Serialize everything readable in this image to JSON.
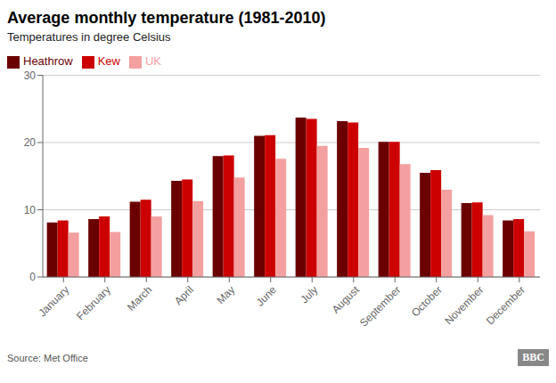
{
  "chart_data": {
    "type": "bar",
    "title": "Average monthly temperature (1981-2010)",
    "subtitle": "Temperatures in degree Celsius",
    "annotations": [
      "Source: Met Office",
      "BBC"
    ],
    "categories": [
      "January",
      "February",
      "March",
      "April",
      "May",
      "June",
      "July",
      "August",
      "September",
      "October",
      "November",
      "December"
    ],
    "series": [
      {
        "name": "Heathrow",
        "color": "#6B0000",
        "values": [
          8.1,
          8.6,
          11.2,
          14.3,
          18.0,
          21.0,
          23.7,
          23.2,
          20.1,
          15.5,
          11.0,
          8.4
        ]
      },
      {
        "name": "Kew",
        "color": "#CC0000",
        "values": [
          8.4,
          9.0,
          11.5,
          14.5,
          18.1,
          21.1,
          23.5,
          23.0,
          20.1,
          15.9,
          11.1,
          8.6
        ]
      },
      {
        "name": "UK",
        "color": "#F4A0A0",
        "values": [
          6.6,
          6.7,
          9.0,
          11.3,
          14.8,
          17.6,
          19.5,
          19.2,
          16.8,
          13.0,
          9.2,
          6.8
        ]
      }
    ],
    "ylim": [
      0,
      30
    ],
    "yticks": [
      0,
      10,
      20,
      30
    ],
    "grid": true,
    "legend": "upper left"
  }
}
